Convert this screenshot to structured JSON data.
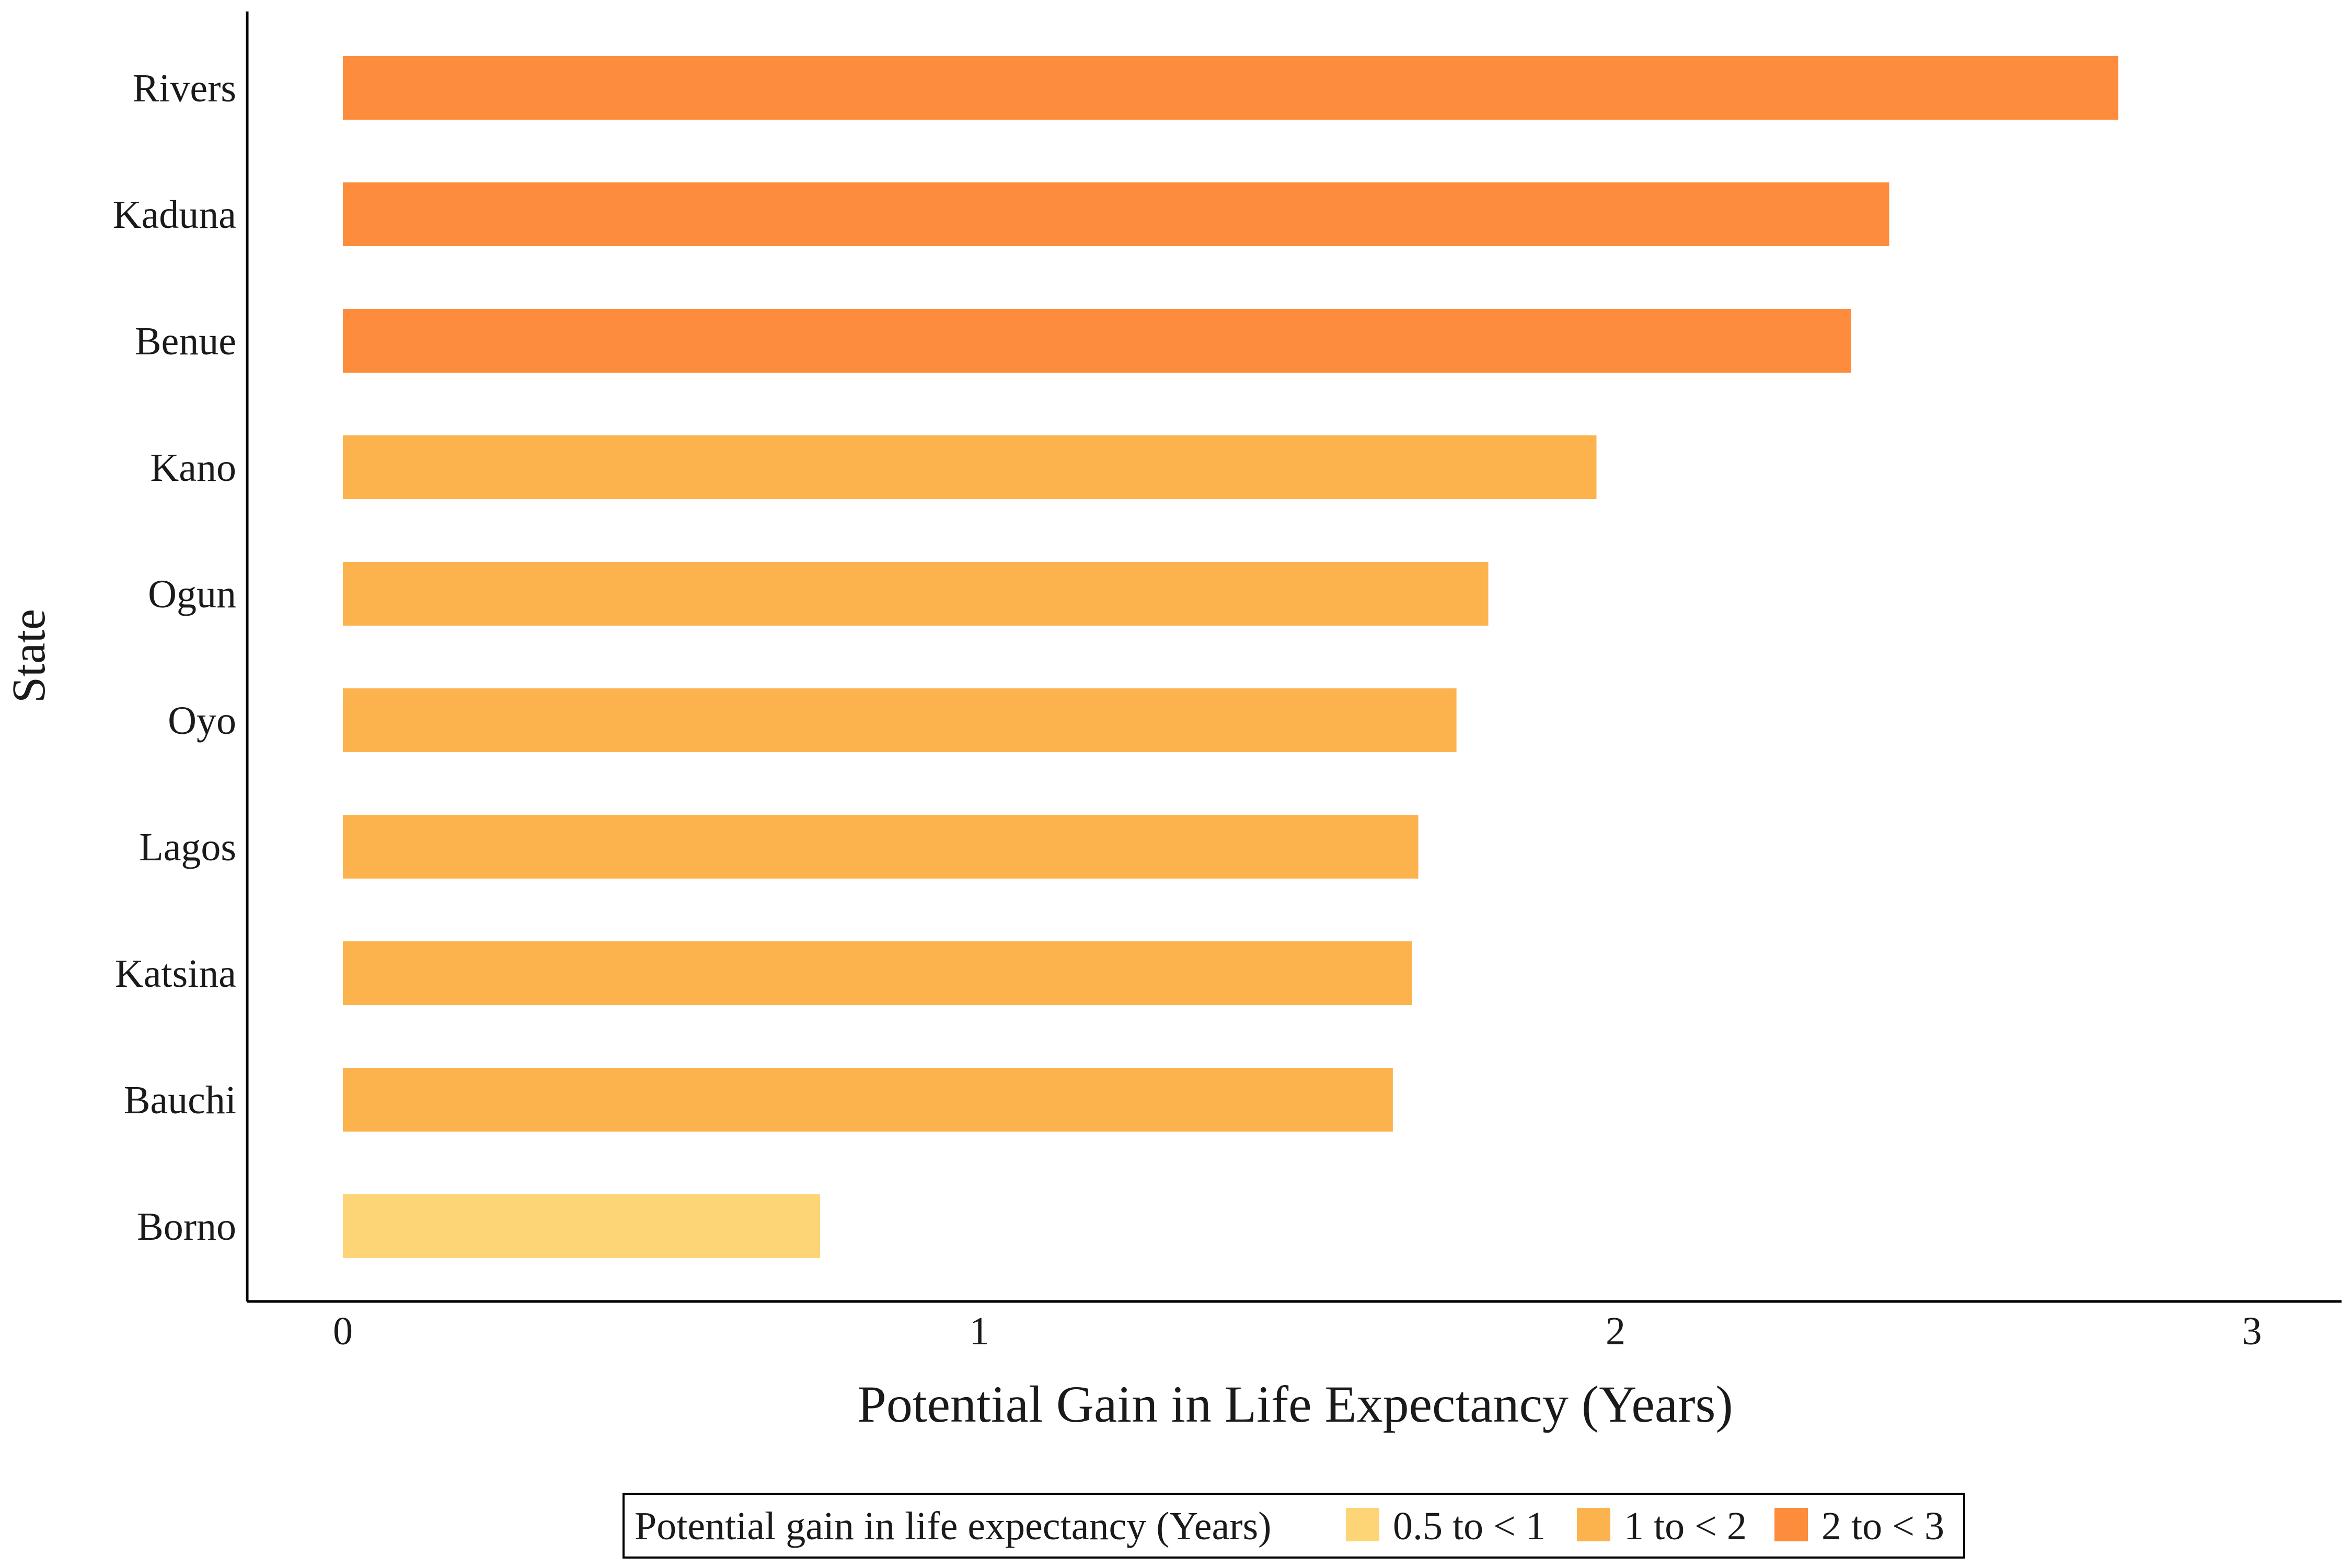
{
  "chart_data": {
    "type": "bar",
    "orientation": "horizontal",
    "xlabel": "Potential Gain in Life Expectancy (Years)",
    "ylabel": "State",
    "xlim": [
      0,
      3.15
    ],
    "xticks": [
      "0",
      "1",
      "2",
      "3"
    ],
    "grid": false,
    "legend_position": "bottom",
    "legend_title": "Potential gain in life expectancy (Years)",
    "legend": [
      {
        "label": "0.5 to < 1",
        "color": "#FDD576"
      },
      {
        "label": "1 to < 2",
        "color": "#FCB34D"
      },
      {
        "label": "2 to < 3",
        "color": "#FD8D3C"
      }
    ],
    "bars": [
      {
        "category": "Rivers",
        "value": 2.79,
        "group": "2 to < 3"
      },
      {
        "category": "Kaduna",
        "value": 2.43,
        "group": "2 to < 3"
      },
      {
        "category": "Benue",
        "value": 2.37,
        "group": "2 to < 3"
      },
      {
        "category": "Kano",
        "value": 1.97,
        "group": "1 to < 2"
      },
      {
        "category": "Ogun",
        "value": 1.8,
        "group": "1 to < 2"
      },
      {
        "category": "Oyo",
        "value": 1.75,
        "group": "1 to < 2"
      },
      {
        "category": "Lagos",
        "value": 1.69,
        "group": "1 to < 2"
      },
      {
        "category": "Katsina",
        "value": 1.68,
        "group": "1 to < 2"
      },
      {
        "category": "Bauchi",
        "value": 1.65,
        "group": "1 to < 2"
      },
      {
        "category": "Borno",
        "value": 0.75,
        "group": "0.5 to < 1"
      }
    ]
  }
}
